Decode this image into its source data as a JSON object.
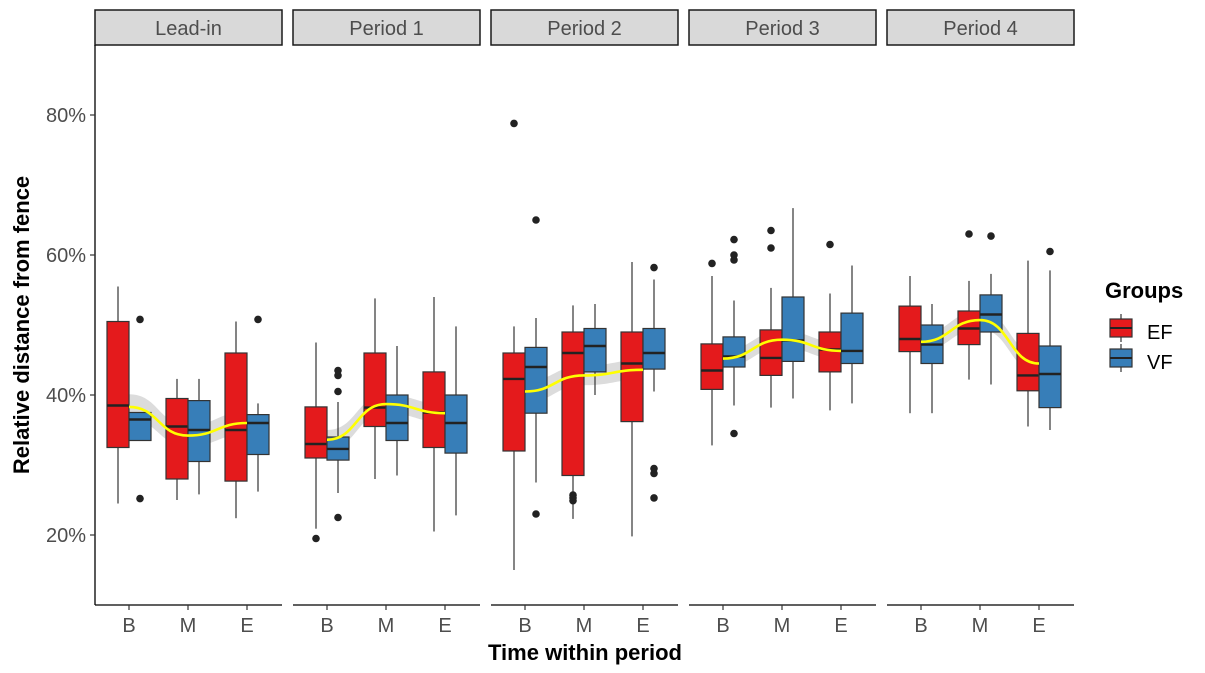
{
  "colors": {
    "EF": "#e41a1c",
    "VF": "#377eb8",
    "smooth": "#ffff00",
    "band": "#bfbfbf"
  },
  "chart_data": {
    "type": "boxplot",
    "xlabel": "Time within period",
    "ylabel": "Relative distance from fence",
    "facets": [
      "Lead-in",
      "Period 1",
      "Period 2",
      "Period 3",
      "Period 4"
    ],
    "categories": [
      "B",
      "M",
      "E"
    ],
    "groups": [
      "EF",
      "VF"
    ],
    "ylim": [
      10,
      90
    ],
    "yticks": [
      20,
      40,
      60,
      80
    ],
    "ytick_labels": [
      "20%",
      "40%",
      "60%",
      "80%"
    ],
    "legend": {
      "title": "Groups",
      "entries": [
        "EF",
        "VF"
      ],
      "position": "right"
    },
    "grid": false,
    "boxes": [
      {
        "facet": 0,
        "cat": 0,
        "group": "EF",
        "lo": 24.5,
        "q1": 32.5,
        "med": 38.5,
        "q3": 50.5,
        "hi": 55.5,
        "out": []
      },
      {
        "facet": 0,
        "cat": 0,
        "group": "VF",
        "lo": 33.5,
        "q1": 33.5,
        "med": 36.5,
        "q3": 37.5,
        "hi": 37.5,
        "out": [
          50.8,
          25.2
        ]
      },
      {
        "facet": 0,
        "cat": 1,
        "group": "EF",
        "lo": 25,
        "q1": 28,
        "med": 35.5,
        "q3": 39.5,
        "hi": 42.3,
        "out": []
      },
      {
        "facet": 0,
        "cat": 1,
        "group": "VF",
        "lo": 25.8,
        "q1": 30.5,
        "med": 35,
        "q3": 39.2,
        "hi": 42.3,
        "out": []
      },
      {
        "facet": 0,
        "cat": 2,
        "group": "EF",
        "lo": 22.4,
        "q1": 27.7,
        "med": 35,
        "q3": 46,
        "hi": 50.5,
        "out": []
      },
      {
        "facet": 0,
        "cat": 2,
        "group": "VF",
        "lo": 26.2,
        "q1": 31.5,
        "med": 36,
        "q3": 37.2,
        "hi": 38.8,
        "out": [
          50.8
        ]
      },
      {
        "facet": 1,
        "cat": 0,
        "group": "EF",
        "lo": 20.9,
        "q1": 31,
        "med": 33,
        "q3": 38.3,
        "hi": 47.5,
        "out": [
          19.5
        ]
      },
      {
        "facet": 1,
        "cat": 0,
        "group": "VF",
        "lo": 26,
        "q1": 30.7,
        "med": 32.3,
        "q3": 34,
        "hi": 39,
        "out": [
          43.5,
          42.8,
          40.5,
          22.5
        ]
      },
      {
        "facet": 1,
        "cat": 1,
        "group": "EF",
        "lo": 28,
        "q1": 35.5,
        "med": 38.2,
        "q3": 46,
        "hi": 53.8,
        "out": []
      },
      {
        "facet": 1,
        "cat": 1,
        "group": "VF",
        "lo": 28.5,
        "q1": 33.5,
        "med": 36,
        "q3": 40,
        "hi": 47,
        "out": []
      },
      {
        "facet": 1,
        "cat": 2,
        "group": "EF",
        "lo": 20.5,
        "q1": 32.5,
        "med": 37.5,
        "q3": 43.3,
        "hi": 54,
        "out": []
      },
      {
        "facet": 1,
        "cat": 2,
        "group": "VF",
        "lo": 22.8,
        "q1": 31.7,
        "med": 36,
        "q3": 40,
        "hi": 49.8,
        "out": []
      },
      {
        "facet": 2,
        "cat": 0,
        "group": "EF",
        "lo": 15,
        "q1": 32,
        "med": 42.3,
        "q3": 46,
        "hi": 49.8,
        "out": [
          78.8
        ]
      },
      {
        "facet": 2,
        "cat": 0,
        "group": "VF",
        "lo": 27.5,
        "q1": 37.4,
        "med": 44,
        "q3": 46.8,
        "hi": 51,
        "out": [
          65,
          23
        ]
      },
      {
        "facet": 2,
        "cat": 1,
        "group": "EF",
        "lo": 22.3,
        "q1": 28.5,
        "med": 46,
        "q3": 49,
        "hi": 52.8,
        "out": [
          25.7,
          25.3,
          24.9
        ]
      },
      {
        "facet": 2,
        "cat": 1,
        "group": "VF",
        "lo": 40,
        "q1": 43.3,
        "med": 47,
        "q3": 49.5,
        "hi": 53,
        "out": []
      },
      {
        "facet": 2,
        "cat": 2,
        "group": "EF",
        "lo": 19.8,
        "q1": 36.2,
        "med": 44.5,
        "q3": 49,
        "hi": 59,
        "out": []
      },
      {
        "facet": 2,
        "cat": 2,
        "group": "VF",
        "lo": 40.5,
        "q1": 43.7,
        "med": 46,
        "q3": 49.5,
        "hi": 56.5,
        "out": [
          58.2,
          29.5,
          28.8,
          25.3
        ]
      },
      {
        "facet": 3,
        "cat": 0,
        "group": "EF",
        "lo": 32.8,
        "q1": 40.8,
        "med": 43.5,
        "q3": 47.3,
        "hi": 57,
        "out": [
          58.8
        ]
      },
      {
        "facet": 3,
        "cat": 0,
        "group": "VF",
        "lo": 38.5,
        "q1": 44,
        "med": 45.5,
        "q3": 48.3,
        "hi": 53.5,
        "out": [
          62.2,
          60,
          59.3,
          34.5
        ]
      },
      {
        "facet": 3,
        "cat": 1,
        "group": "EF",
        "lo": 38.2,
        "q1": 42.8,
        "med": 45.3,
        "q3": 49.3,
        "hi": 55.3,
        "out": [
          63.5,
          61
        ]
      },
      {
        "facet": 3,
        "cat": 1,
        "group": "VF",
        "lo": 39.5,
        "q1": 44.8,
        "med": 47.8,
        "q3": 54,
        "hi": 66.7,
        "out": []
      },
      {
        "facet": 3,
        "cat": 2,
        "group": "EF",
        "lo": 37.8,
        "q1": 43.3,
        "med": 46.5,
        "q3": 49,
        "hi": 54.5,
        "out": [
          61.5
        ]
      },
      {
        "facet": 3,
        "cat": 2,
        "group": "VF",
        "lo": 38.8,
        "q1": 44.5,
        "med": 46.3,
        "q3": 51.7,
        "hi": 58.5,
        "out": []
      },
      {
        "facet": 4,
        "cat": 0,
        "group": "EF",
        "lo": 37.4,
        "q1": 46.2,
        "med": 48,
        "q3": 52.7,
        "hi": 57,
        "out": []
      },
      {
        "facet": 4,
        "cat": 0,
        "group": "VF",
        "lo": 37.4,
        "q1": 44.5,
        "med": 47.2,
        "q3": 50,
        "hi": 53,
        "out": []
      },
      {
        "facet": 4,
        "cat": 1,
        "group": "EF",
        "lo": 42.2,
        "q1": 47.2,
        "med": 49.5,
        "q3": 52,
        "hi": 56.3,
        "out": [
          63
        ]
      },
      {
        "facet": 4,
        "cat": 1,
        "group": "VF",
        "lo": 41.5,
        "q1": 49,
        "med": 51.5,
        "q3": 54.3,
        "hi": 57.3,
        "out": [
          62.7
        ]
      },
      {
        "facet": 4,
        "cat": 2,
        "group": "EF",
        "lo": 35.5,
        "q1": 40.6,
        "med": 42.8,
        "q3": 48.8,
        "hi": 59.2,
        "out": []
      },
      {
        "facet": 4,
        "cat": 2,
        "group": "VF",
        "lo": 35,
        "q1": 38.2,
        "med": 43,
        "q3": 47,
        "hi": 57.8,
        "out": [
          60.5
        ]
      }
    ],
    "smooth": [
      {
        "facet": 0,
        "values": [
          38.3,
          34.2,
          36.0
        ],
        "band": [
          [
            36.5,
            40.1
          ],
          [
            32.7,
            35.7
          ],
          [
            34.4,
            37.6
          ]
        ]
      },
      {
        "facet": 1,
        "values": [
          33.6,
          38.7,
          37.4
        ],
        "band": [
          [
            32.2,
            35.0
          ],
          [
            37.4,
            40.0
          ],
          [
            36.1,
            38.7
          ]
        ]
      },
      {
        "facet": 2,
        "values": [
          40.5,
          42.8,
          43.6
        ],
        "band": [
          [
            39.0,
            42.0
          ],
          [
            41.4,
            44.2
          ],
          [
            42.2,
            45.0
          ]
        ]
      },
      {
        "facet": 3,
        "values": [
          45.2,
          47.9,
          46.3
        ],
        "band": [
          [
            44.0,
            46.4
          ],
          [
            46.7,
            49.1
          ],
          [
            45.1,
            47.5
          ]
        ]
      },
      {
        "facet": 4,
        "values": [
          47.6,
          50.7,
          44.5
        ],
        "band": [
          [
            46.4,
            48.8
          ],
          [
            49.4,
            52.0
          ],
          [
            43.2,
            45.8
          ]
        ]
      }
    ]
  }
}
